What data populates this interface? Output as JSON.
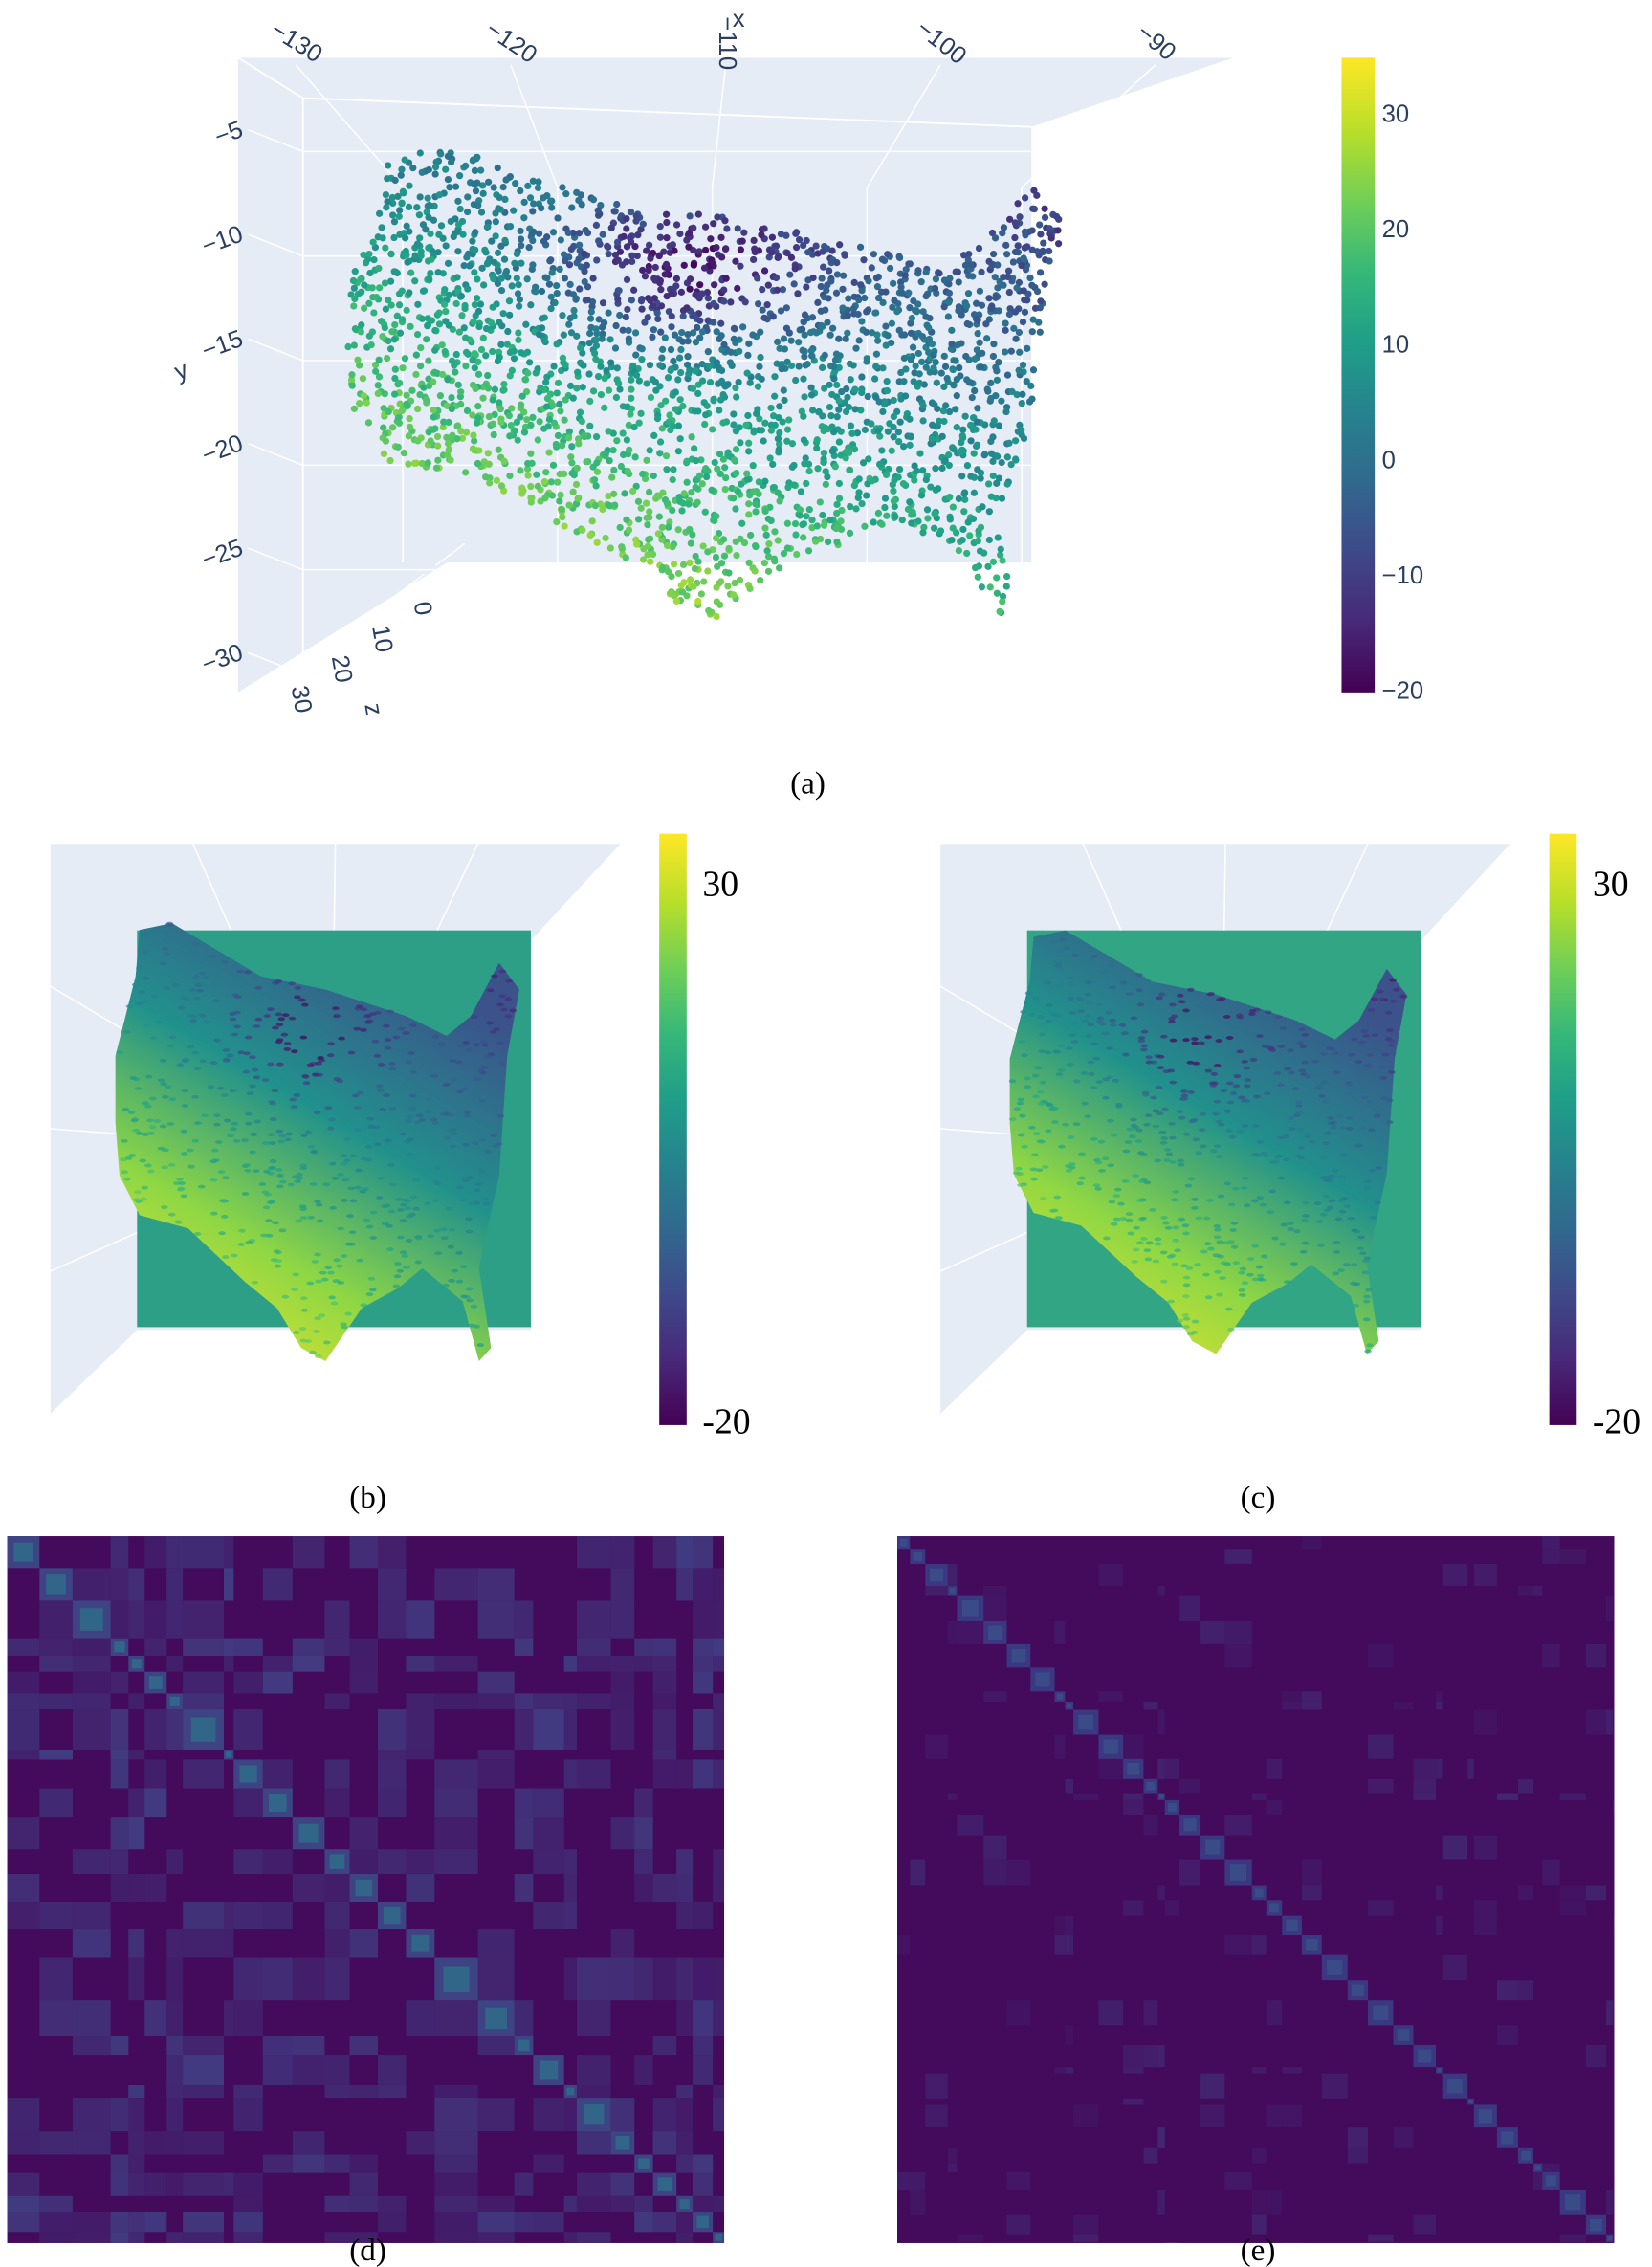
{
  "chart_data": [
    {
      "type": "scatter3d",
      "caption": "(a)",
      "x_label": "x",
      "y_label": "y",
      "z_label": "z",
      "xticks": [
        {
          "value": -130,
          "label": "−130"
        },
        {
          "value": -120,
          "label": "−120"
        },
        {
          "value": -110,
          "label": "−110"
        },
        {
          "value": -100,
          "label": "−100"
        },
        {
          "value": -90,
          "label": "−90"
        }
      ],
      "yticks": [
        {
          "value": -5,
          "label": "−5"
        },
        {
          "value": -10,
          "label": "−10"
        },
        {
          "value": -15,
          "label": "−15"
        },
        {
          "value": -20,
          "label": "−20"
        },
        {
          "value": -25,
          "label": "−25"
        },
        {
          "value": -30,
          "label": "−30"
        }
      ],
      "zticks": [
        0,
        10,
        20,
        30
      ],
      "colorbar": {
        "lim": [
          -20,
          35
        ],
        "ticks": [
          {
            "value": -20,
            "label": "−20"
          },
          {
            "value": -10,
            "label": "−10"
          },
          0,
          10,
          20,
          30
        ],
        "colorscale": "viridis"
      }
    },
    {
      "type": "surface3d",
      "caption": "(b)",
      "colorbar": {
        "lim": [
          -20,
          35
        ],
        "ticks": [
          {
            "value": -20,
            "label": "-20"
          },
          30
        ],
        "colorscale": "viridis"
      }
    },
    {
      "type": "surface3d",
      "caption": "(c)",
      "colorbar": {
        "lim": [
          -20,
          35
        ],
        "ticks": [
          {
            "value": -20,
            "label": "-20"
          },
          30
        ],
        "colorscale": "viridis"
      }
    },
    {
      "type": "heatmap",
      "caption": "(d)"
    },
    {
      "type": "heatmap",
      "caption": "(e)"
    }
  ]
}
